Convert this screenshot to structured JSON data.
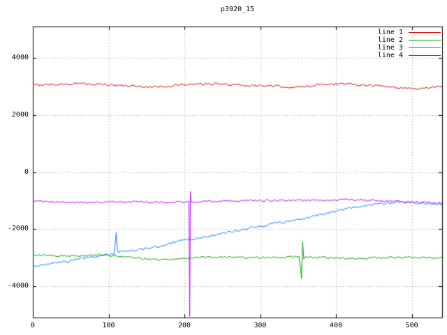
{
  "chart_data": {
    "type": "line",
    "title": "p3920_15",
    "xlabel": "",
    "ylabel": "",
    "xlim": [
      0,
      540
    ],
    "ylim": [
      -5100,
      5100
    ],
    "xticks": [
      0,
      100,
      200,
      300,
      400,
      500
    ],
    "xtick_labels": [
      "0",
      "100",
      "200",
      "300",
      "400",
      "500"
    ],
    "yticks": [
      -4000,
      -2000,
      0,
      2000,
      4000
    ],
    "ytick_labels": [
      "-4000",
      "-2000",
      "0",
      "2000",
      "4000"
    ],
    "grid": true,
    "grid_color": "#9a9a9a",
    "border_color": "#000000",
    "background": "#ffffff",
    "legend_position": "top-right-inside",
    "sample_step": 2,
    "series": [
      {
        "name": "line 1",
        "color": "#dd0000",
        "noise": 40,
        "trend": [
          [
            0,
            3050
          ],
          [
            40,
            3080
          ],
          [
            70,
            3100
          ],
          [
            110,
            3040
          ],
          [
            160,
            2980
          ],
          [
            200,
            3060
          ],
          [
            240,
            3090
          ],
          [
            280,
            3040
          ],
          [
            320,
            3010
          ],
          [
            350,
            2960
          ],
          [
            380,
            3080
          ],
          [
            410,
            3090
          ],
          [
            450,
            3040
          ],
          [
            480,
            2960
          ],
          [
            510,
            2920
          ],
          [
            540,
            3010
          ]
        ],
        "spike_points": []
      },
      {
        "name": "line 2",
        "color": "#00a000",
        "noise": 35,
        "trend": [
          [
            0,
            -2910
          ],
          [
            50,
            -2950
          ],
          [
            90,
            -2890
          ],
          [
            120,
            -2970
          ],
          [
            150,
            -3040
          ],
          [
            170,
            -3070
          ],
          [
            200,
            -3010
          ],
          [
            240,
            -2980
          ],
          [
            280,
            -3000
          ],
          [
            320,
            -2990
          ],
          [
            350,
            -2970
          ],
          [
            380,
            -3000
          ],
          [
            420,
            -3030
          ],
          [
            460,
            -3000
          ],
          [
            500,
            -2990
          ],
          [
            540,
            -3010
          ]
        ],
        "spike_points": [
          [
            351,
            -2950
          ],
          [
            353,
            -3300
          ],
          [
            354.5,
            -3730
          ],
          [
            356,
            -2450
          ],
          [
            357.5,
            -3050
          ],
          [
            359,
            -2980
          ]
        ]
      },
      {
        "name": "line 3",
        "color": "#0080ff",
        "noise": 40,
        "trend": [
          [
            0,
            -3310
          ],
          [
            30,
            -3200
          ],
          [
            60,
            -3060
          ],
          [
            90,
            -2930
          ],
          [
            105,
            -2880
          ],
          [
            115,
            -2770
          ],
          [
            140,
            -2730
          ],
          [
            170,
            -2580
          ],
          [
            200,
            -2380
          ],
          [
            230,
            -2270
          ],
          [
            260,
            -2100
          ],
          [
            290,
            -1950
          ],
          [
            320,
            -1800
          ],
          [
            350,
            -1680
          ],
          [
            380,
            -1480
          ],
          [
            410,
            -1310
          ],
          [
            435,
            -1190
          ],
          [
            460,
            -1100
          ],
          [
            490,
            -1060
          ],
          [
            515,
            -1090
          ],
          [
            540,
            -1130
          ]
        ],
        "spike_points": [
          [
            107,
            -2900
          ],
          [
            109,
            -2450
          ],
          [
            110,
            -2120
          ],
          [
            111.5,
            -2700
          ],
          [
            113,
            -2820
          ]
        ]
      },
      {
        "name": "line 4",
        "color": "#c000ff",
        "noise": 35,
        "trend": [
          [
            0,
            -1030
          ],
          [
            60,
            -1070
          ],
          [
            120,
            -1040
          ],
          [
            180,
            -1060
          ],
          [
            240,
            -1020
          ],
          [
            300,
            -1000
          ],
          [
            360,
            -990
          ],
          [
            420,
            -970
          ],
          [
            470,
            -1010
          ],
          [
            510,
            -1060
          ],
          [
            540,
            -1080
          ]
        ],
        "spike_points": [
          [
            206,
            -1040
          ],
          [
            207,
            -5060
          ],
          [
            207.8,
            -680
          ],
          [
            208.6,
            -1030
          ]
        ]
      }
    ]
  }
}
